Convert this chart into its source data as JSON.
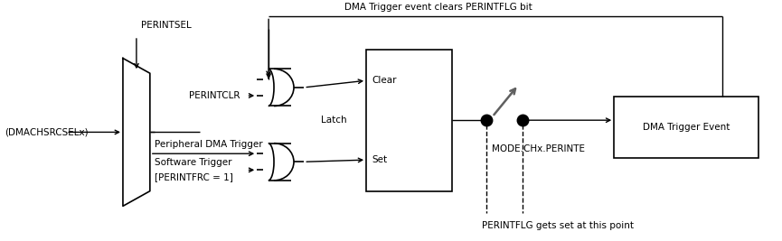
{
  "bg_color": "#ffffff",
  "line_color": "#000000",
  "gray_color": "#606060",
  "font_size": 7.5,
  "fig_width": 8.65,
  "fig_height": 2.67,
  "labels": {
    "top_feedback": "DMA Trigger event clears PERINTFLG bit",
    "perintsel": "PERINTSEL",
    "dmachsrcselx": "(DMACHSRCSELx)",
    "perintclr": "PERINTCLR",
    "peripheral_dma": "Peripheral DMA Trigger",
    "software_trigger": "Software Trigger",
    "perintfrc": "[PERINTFRC = 1]",
    "clear": "Clear",
    "set": "Set",
    "latch": "Latch",
    "mode_chx": "MODE.CHx.PERINTE",
    "dma_trigger": "DMA Trigger Event",
    "perintflg": "PERINTFLG gets set at this point"
  }
}
